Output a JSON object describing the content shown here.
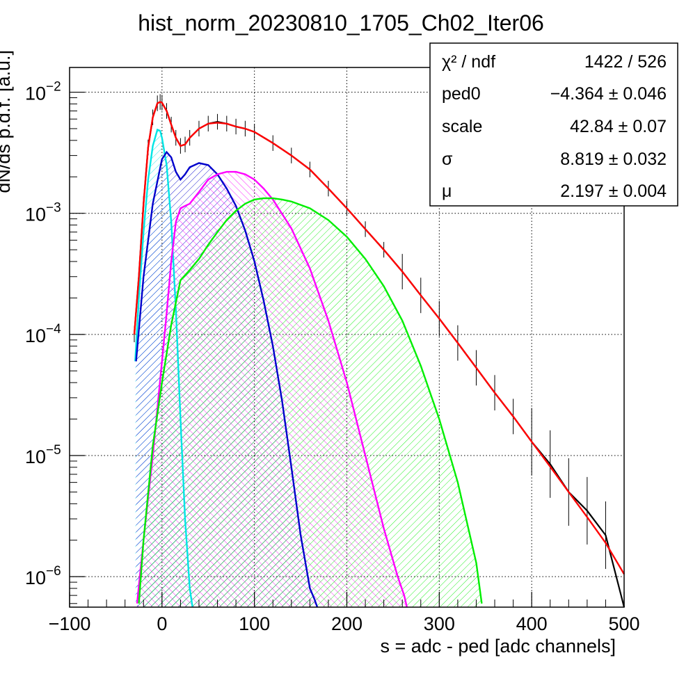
{
  "chart_data": {
    "type": "line",
    "title": "hist_norm_20230810_1705_Ch02_Iter06",
    "xlabel": "s = adc - ped [adc channels]",
    "ylabel": "dN/ds p.d.f. [a.u.]",
    "xlim": [
      -100,
      500
    ],
    "ylim": [
      5.6e-07,
      0.016
    ],
    "yscale": "log",
    "grid": true,
    "x_ticks": [
      {
        "value": -100,
        "label": "−100"
      },
      {
        "value": 0,
        "label": "0"
      },
      {
        "value": 100,
        "label": "100"
      },
      {
        "value": 200,
        "label": "200"
      },
      {
        "value": 300,
        "label": "300"
      },
      {
        "value": 400,
        "label": "400"
      },
      {
        "value": 500,
        "label": "500"
      }
    ],
    "y_ticks": [
      {
        "value": 0.01,
        "base": "10",
        "exp": "−2"
      },
      {
        "value": 0.001,
        "base": "10",
        "exp": "−3"
      },
      {
        "value": 0.0001,
        "base": "10",
        "exp": "−4"
      },
      {
        "value": 1e-05,
        "base": "10",
        "exp": "−5"
      },
      {
        "value": 1e-06,
        "base": "10",
        "exp": "−6"
      }
    ],
    "stats_box": {
      "placement": "top-right",
      "rows": [
        {
          "label": "χ² / ndf",
          "value": "1422 / 526"
        },
        {
          "label": "ped0",
          "value": "−4.364 ± 0.046"
        },
        {
          "label": "scale",
          "value": "42.84 ± 0.07"
        },
        {
          "label": "σ",
          "value": "8.819 ± 0.032"
        },
        {
          "label": "μ",
          "value": "2.197 ± 0.004"
        }
      ]
    },
    "series": [
      {
        "kind": "data",
        "color": "#000000",
        "x": [
          -30,
          -25,
          -20,
          -15,
          -10,
          -5,
          -2,
          0,
          5,
          10,
          15,
          20,
          25,
          30,
          40,
          50,
          60,
          70,
          80,
          90,
          100,
          120,
          140,
          160,
          180,
          200,
          220,
          240,
          260,
          280,
          300,
          320,
          340,
          360,
          380,
          400,
          420,
          440,
          460,
          480,
          500
        ],
        "y": [
          0.0001,
          0.0003,
          0.0012,
          0.0035,
          0.0062,
          0.0081,
          0.0083,
          0.0082,
          0.007,
          0.0054,
          0.0042,
          0.0036,
          0.0037,
          0.0042,
          0.005,
          0.0055,
          0.0057,
          0.0055,
          0.0052,
          0.005,
          0.0047,
          0.0038,
          0.003,
          0.0023,
          0.0016,
          0.0011,
          0.00074,
          0.0005,
          0.00033,
          0.00021,
          0.000135,
          8.5e-05,
          5.3e-05,
          3.3e-05,
          2.1e-05,
          1.3e-05,
          8.5e-06,
          5e-06,
          3.5e-06,
          2.2e-06,
          5e-07
        ]
      },
      {
        "kind": "fit-total",
        "color": "#ff0000",
        "x": [
          -30,
          -25,
          -20,
          -15,
          -10,
          -5,
          -2,
          0,
          5,
          10,
          15,
          20,
          25,
          30,
          40,
          50,
          60,
          70,
          80,
          90,
          100,
          120,
          140,
          160,
          180,
          200,
          220,
          240,
          260,
          280,
          300,
          320,
          340,
          360,
          380,
          400,
          420,
          440,
          460,
          480,
          500
        ],
        "y": [
          0.0001,
          0.0003,
          0.0012,
          0.0035,
          0.0062,
          0.0081,
          0.0083,
          0.0082,
          0.007,
          0.0054,
          0.0042,
          0.0036,
          0.0037,
          0.0042,
          0.005,
          0.0055,
          0.0056,
          0.0055,
          0.0052,
          0.005,
          0.0047,
          0.0038,
          0.003,
          0.0023,
          0.0016,
          0.0011,
          0.00074,
          0.0005,
          0.00033,
          0.00021,
          0.000135,
          8.5e-05,
          5.3e-05,
          3.3e-05,
          2.1e-05,
          1.3e-05,
          8.1e-06,
          5e-06,
          3.1e-06,
          1.9e-06,
          1.05e-06
        ]
      },
      {
        "kind": "component-0",
        "color": "#00e5e5",
        "x": [
          -29,
          -25,
          -20,
          -15,
          -10,
          -5,
          -2,
          0,
          5,
          10,
          15,
          20,
          25,
          30,
          33
        ],
        "y": [
          6e-05,
          0.0002,
          0.0007,
          0.0019,
          0.0036,
          0.0049,
          0.0048,
          0.0042,
          0.0025,
          0.00085,
          0.00016,
          2e-05,
          3e-06,
          8e-07,
          5e-07
        ]
      },
      {
        "kind": "component-1",
        "color": "#0000cc",
        "x": [
          -28,
          -20,
          -10,
          0,
          5,
          10,
          15,
          20,
          25,
          30,
          40,
          50,
          60,
          70,
          80,
          90,
          100,
          110,
          120,
          130,
          140,
          150,
          160,
          165,
          168
        ],
        "y": [
          6e-05,
          0.0003,
          0.0012,
          0.0028,
          0.0032,
          0.0029,
          0.0022,
          0.0019,
          0.0021,
          0.0024,
          0.0026,
          0.0025,
          0.0021,
          0.0016,
          0.00115,
          0.00072,
          0.0004,
          0.00019,
          8e-05,
          2.8e-05,
          8e-06,
          2.2e-06,
          8e-07,
          6.5e-07,
          5.6e-07
        ]
      },
      {
        "kind": "component-2",
        "color": "#ff00ff",
        "x": [
          -27,
          -20,
          -10,
          0,
          5,
          10,
          15,
          20,
          25,
          30,
          40,
          50,
          60,
          70,
          80,
          90,
          100,
          110,
          120,
          140,
          160,
          180,
          200,
          220,
          240,
          255,
          262,
          265
        ],
        "y": [
          6e-07,
          2e-06,
          1e-05,
          6e-05,
          0.00015,
          0.0004,
          0.00085,
          0.0011,
          0.00115,
          0.0012,
          0.0015,
          0.0019,
          0.0021,
          0.0022,
          0.0022,
          0.0021,
          0.0019,
          0.0016,
          0.0013,
          0.00075,
          0.00035,
          0.00013,
          4e-05,
          1e-05,
          2.5e-06,
          1e-06,
          7e-07,
          5.6e-07
        ]
      },
      {
        "kind": "component-3",
        "color": "#00ee00",
        "x": [
          -25,
          -20,
          -10,
          0,
          10,
          20,
          30,
          40,
          50,
          60,
          70,
          80,
          90,
          100,
          110,
          120,
          130,
          140,
          160,
          180,
          200,
          220,
          240,
          260,
          280,
          300,
          320,
          340,
          346
        ],
        "y": [
          6e-07,
          2e-06,
          1.2e-05,
          4e-05,
          0.00012,
          0.00028,
          0.00034,
          0.00042,
          0.00055,
          0.0007,
          0.00088,
          0.00105,
          0.0012,
          0.0013,
          0.00133,
          0.00133,
          0.0013,
          0.00125,
          0.0011,
          0.00088,
          0.00064,
          0.00042,
          0.00025,
          0.00013,
          5.5e-05,
          2e-05,
          6e-06,
          1.3e-06,
          6e-07
        ]
      }
    ]
  }
}
